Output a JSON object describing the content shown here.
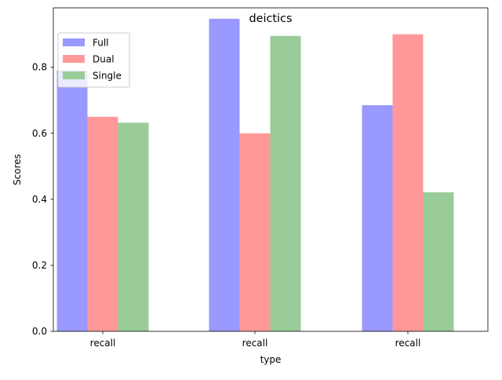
{
  "chart_data": {
    "type": "bar",
    "title": "deictics",
    "xlabel": "type",
    "ylabel": "Scores",
    "categories": [
      "recall",
      "recall",
      "recall"
    ],
    "series": [
      {
        "name": "Full",
        "color": "#9999ff",
        "values": [
          0.79,
          0.947,
          0.685
        ]
      },
      {
        "name": "Dual",
        "color": "#ff9999",
        "values": [
          0.65,
          0.6,
          0.9
        ]
      },
      {
        "name": "Single",
        "color": "#99cc99",
        "values": [
          0.632,
          0.895,
          0.421
        ]
      }
    ],
    "ylim": [
      0,
      0.98
    ],
    "yticks": [
      0.0,
      0.2,
      0.4,
      0.6,
      0.8
    ],
    "ytick_labels": [
      "0.0",
      "0.2",
      "0.4",
      "0.6",
      "0.8"
    ],
    "grid": false,
    "legend_position": "top-left"
  }
}
